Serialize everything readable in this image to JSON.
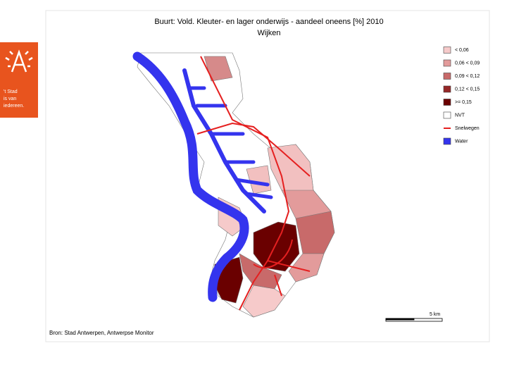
{
  "logo": {
    "lines": [
      "'t Stad",
      "is van",
      "iedereen."
    ]
  },
  "header": {
    "title_lines": [
      "Buurt: Vold. Kleuter- en lager onderwijs - aandeel oneens [%] 2010",
      "Wijken"
    ]
  },
  "legend": {
    "items": [
      {
        "label": "< 0,06",
        "color": "#f6caca"
      },
      {
        "label": "0,06 < 0,09",
        "color": "#e39b9b"
      },
      {
        "label": "0,09 < 0,12",
        "color": "#c86a6a"
      },
      {
        "label": "0,12 < 0,15",
        "color": "#962727"
      },
      {
        "label": ">= 0,15",
        "color": "#6a0000"
      },
      {
        "label": "NVT",
        "color": "#ffffff"
      },
      {
        "label": "Snelwegen",
        "color": "#e52020"
      },
      {
        "label": "Water",
        "color": "#3434ee"
      }
    ]
  },
  "scale": {
    "label": "5 km"
  },
  "source": "Bron: Stad Antwerpen, Antwerpse Monitor"
}
